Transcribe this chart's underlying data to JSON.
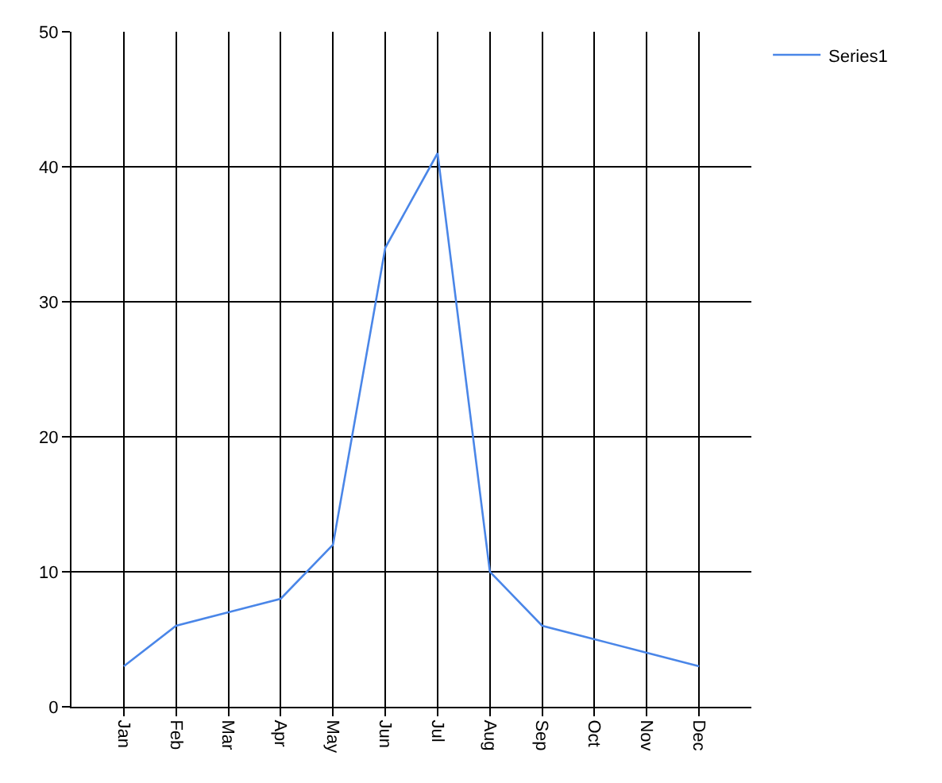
{
  "chart_data": {
    "type": "line",
    "categories": [
      "Jan",
      "Feb",
      "Mar",
      "Apr",
      "May",
      "Jun",
      "Jul",
      "Aug",
      "Sep",
      "Oct",
      "Nov",
      "Dec"
    ],
    "series": [
      {
        "name": "Series1",
        "color": "#4a86e8",
        "values": [
          3,
          6,
          7,
          8,
          12,
          34,
          41,
          10,
          6,
          5,
          4,
          3
        ]
      }
    ],
    "ylim": [
      0,
      50
    ],
    "yticks": [
      0,
      10,
      20,
      30,
      40,
      50
    ],
    "grid": true,
    "legend": "top right"
  }
}
